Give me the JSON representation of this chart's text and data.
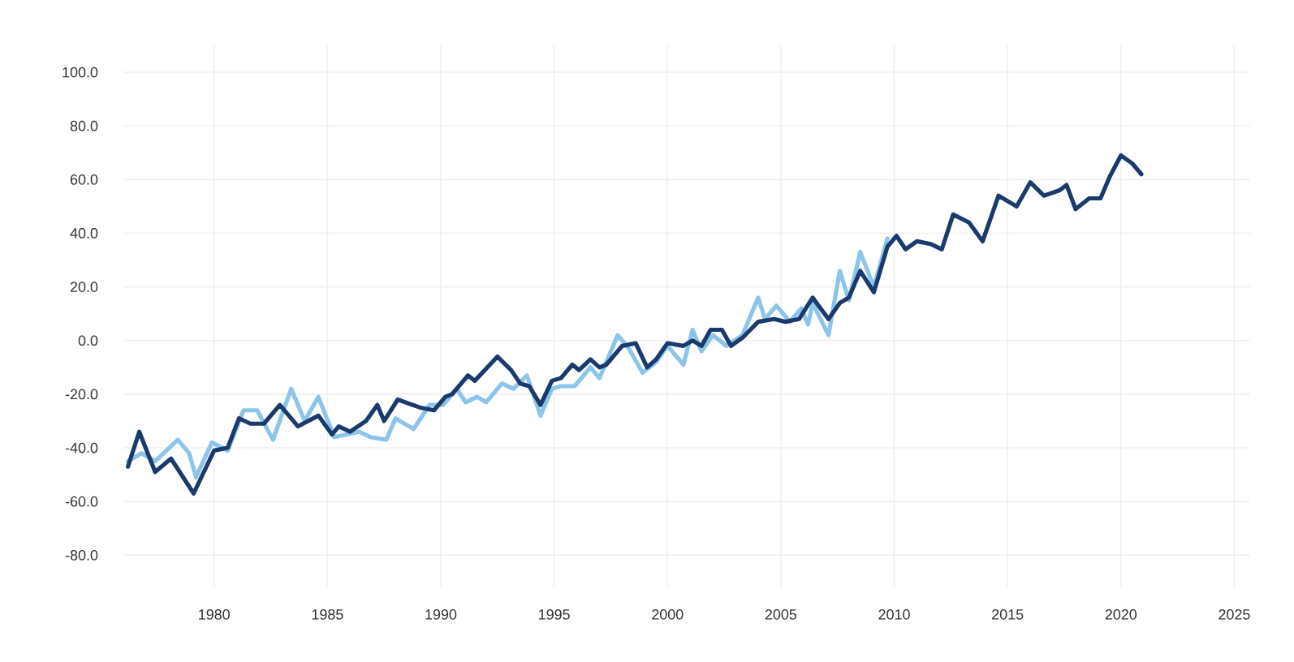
{
  "chart_data": {
    "type": "line",
    "series": [
      {
        "color": "#8cc4ea",
        "x": [
          1976.2,
          1976.8,
          1977.4,
          1978.4,
          1978.9,
          1979.2,
          1979.9,
          1980.6,
          1981.3,
          1981.9,
          1982.6,
          1983.4,
          1984.0,
          1984.6,
          1985.3,
          1986.4,
          1986.9,
          1987.6,
          1988.0,
          1988.8,
          1989.5,
          1990.1,
          1990.7,
          1991.1,
          1991.6,
          1992.0,
          1992.7,
          1993.2,
          1993.8,
          1994.4,
          1994.9,
          1995.3,
          1995.9,
          1996.6,
          1997.0,
          1997.8,
          1998.3,
          1998.9,
          1999.5,
          2000.0,
          2000.7,
          2001.1,
          2001.5,
          2002.0,
          2002.6,
          2003.3,
          2004.0,
          2004.3,
          2004.8,
          2005.4,
          2005.9,
          2006.2,
          2006.4,
          2007.1,
          2007.6,
          2008.0,
          2008.5,
          2009.1,
          2009.7
        ],
        "values": [
          -45,
          -42,
          -45,
          -37,
          -42,
          -51,
          -38,
          -41,
          -26,
          -26,
          -37,
          -18,
          -30,
          -21,
          -36,
          -34,
          -36,
          -37,
          -29,
          -33,
          -24,
          -24,
          -18,
          -23,
          -21,
          -23,
          -16,
          -18,
          -13,
          -28,
          -18,
          -17,
          -17,
          -10,
          -14,
          2,
          -3,
          -12,
          -8,
          -2,
          -9,
          4,
          -4,
          2,
          -2,
          2,
          16,
          8,
          13,
          7,
          12,
          6,
          14,
          2,
          26,
          15,
          33,
          20,
          38
        ]
      },
      {
        "color": "#1a3a6e",
        "x": [
          1976.2,
          1976.7,
          1977.4,
          1978.1,
          1979.1,
          1980.0,
          1980.6,
          1981.1,
          1981.6,
          1982.2,
          1982.9,
          1983.7,
          1984.6,
          1985.2,
          1985.5,
          1986.0,
          1986.7,
          1987.2,
          1987.5,
          1988.1,
          1989.1,
          1989.7,
          1990.2,
          1990.5,
          1991.2,
          1991.5,
          1992.5,
          1993.1,
          1993.5,
          1993.9,
          1994.4,
          1994.9,
          1995.3,
          1995.8,
          1996.1,
          1996.6,
          1997.0,
          1997.3,
          1998.0,
          1998.6,
          1999.1,
          1999.5,
          2000.0,
          2000.7,
          2001.1,
          2001.5,
          2001.9,
          2002.4,
          2002.8,
          2003.3,
          2004.0,
          2004.7,
          2005.2,
          2005.8,
          2006.4,
          2007.1,
          2007.6,
          2008.0,
          2008.5,
          2009.1,
          2009.7,
          2010.1,
          2010.5,
          2011.0,
          2011.6,
          2012.1,
          2012.6,
          2013.3,
          2013.9,
          2014.6,
          2015.4,
          2016.0,
          2016.6,
          2017.3,
          2017.6,
          2018.0,
          2018.6,
          2019.1,
          2019.5,
          2020.0,
          2020.5,
          2020.9
        ],
        "values": [
          -47,
          -34,
          -49,
          -44,
          -57,
          -41,
          -40,
          -29,
          -31,
          -31,
          -24,
          -32,
          -28,
          -35,
          -32,
          -34,
          -30,
          -24,
          -30,
          -22,
          -25,
          -26,
          -21,
          -20,
          -13,
          -15,
          -6,
          -11,
          -16,
          -17,
          -24,
          -15,
          -14,
          -9,
          -11,
          -7,
          -10,
          -9,
          -2,
          -1,
          -10,
          -7,
          -1,
          -2,
          0,
          -2,
          4,
          4,
          -2,
          1,
          7,
          8,
          7,
          8,
          16,
          8,
          14,
          16,
          26,
          18,
          35,
          39,
          34,
          37,
          36,
          34,
          47,
          44,
          37,
          54,
          50,
          59,
          54,
          56,
          58,
          49,
          53,
          53,
          61,
          69,
          66,
          62
        ]
      }
    ],
    "xlim": [
      1976,
      2025.7
    ],
    "ylim": [
      -92,
      110
    ],
    "xticks": [
      1980,
      1985,
      1990,
      1995,
      2000,
      2005,
      2010,
      2015,
      2020,
      2025
    ],
    "yticks": [
      {
        "value": -80,
        "label": "-80.0"
      },
      {
        "value": -60,
        "label": "-60.0"
      },
      {
        "value": -40,
        "label": "-40.0"
      },
      {
        "value": -20,
        "label": "-20.0"
      },
      {
        "value": 0,
        "label": "0.0"
      },
      {
        "value": 20,
        "label": "20.0"
      },
      {
        "value": 40,
        "label": "40.0"
      },
      {
        "value": 60,
        "label": "60.0"
      },
      {
        "value": 80,
        "label": "80.0"
      },
      {
        "value": 100,
        "label": "100.0"
      }
    ],
    "grid": true,
    "marker": "none",
    "line_style": "solid"
  }
}
